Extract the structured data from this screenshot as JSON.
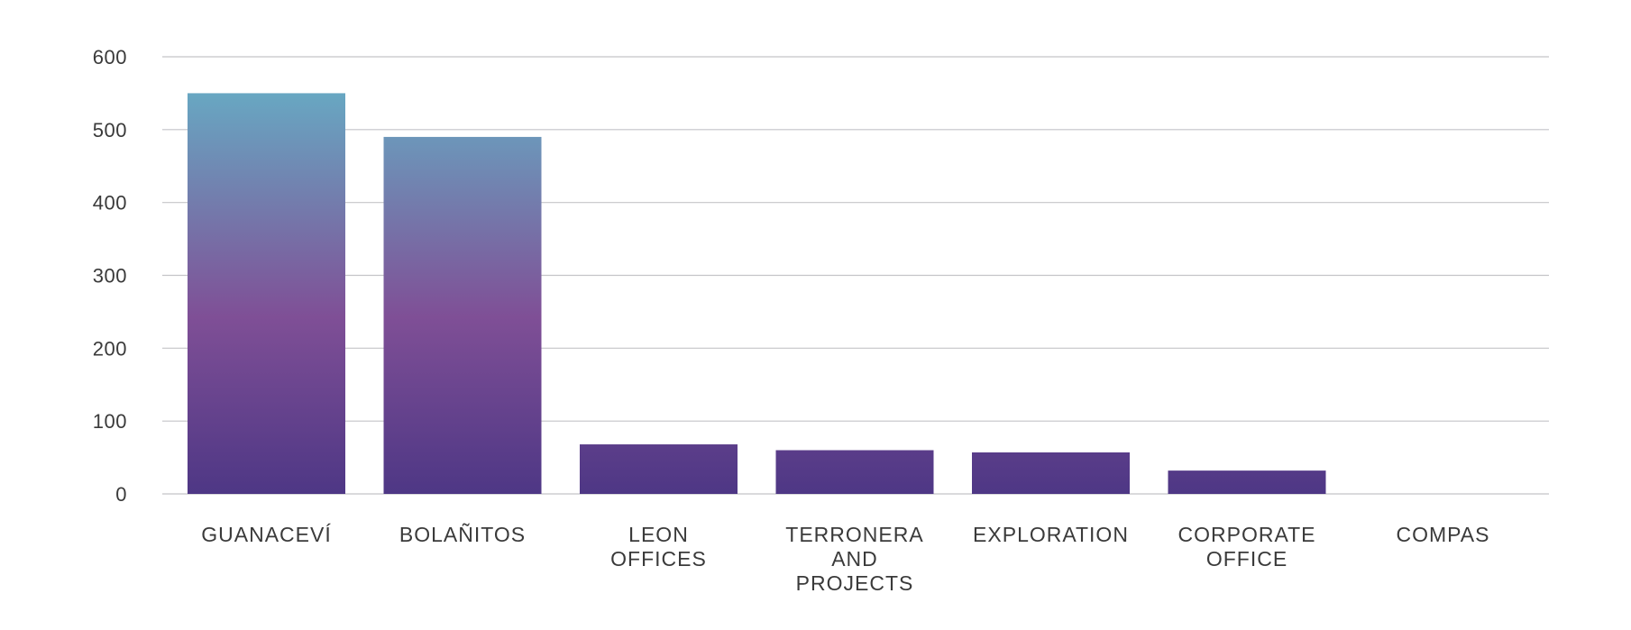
{
  "chart_data": {
    "type": "bar",
    "categories": [
      [
        "GUANACEVÍ"
      ],
      [
        "BOLAÑITOS"
      ],
      [
        "LEON",
        "OFFICES"
      ],
      [
        "TERRONERA",
        "AND",
        "PROJECTS"
      ],
      [
        "EXPLORATION"
      ],
      [
        "CORPORATE",
        "OFFICE"
      ],
      [
        "COMPAS"
      ]
    ],
    "values": [
      550,
      490,
      68,
      60,
      57,
      32,
      0
    ],
    "ylim": [
      0,
      600
    ],
    "yticks": [
      0,
      100,
      200,
      300,
      400,
      500,
      600
    ],
    "grid": true,
    "title": "",
    "xlabel": "",
    "ylabel": "",
    "colors": {
      "bar_top": "#68a7c2",
      "bar_mid": "#7f4f96",
      "bar_bottom": "#4e3785",
      "grid": "#c4c4c8",
      "text": "#3a3a3a"
    }
  }
}
